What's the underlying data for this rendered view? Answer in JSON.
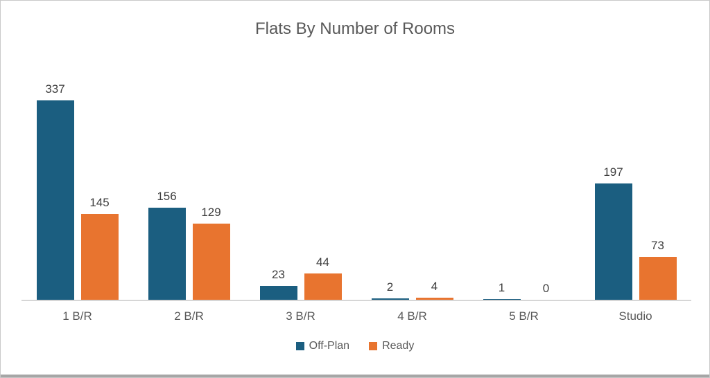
{
  "chart_data": {
    "type": "bar",
    "title": "Flats By Number of Rooms",
    "categories": [
      "1 B/R",
      "2 B/R",
      "3 B/R",
      "4 B/R",
      "5 B/R",
      "Studio"
    ],
    "series": [
      {
        "name": "Off-Plan",
        "color": "#1B5E80",
        "values": [
          337,
          156,
          23,
          2,
          1,
          197
        ]
      },
      {
        "name": "Ready",
        "color": "#E8742F",
        "values": [
          145,
          129,
          44,
          4,
          0,
          73
        ]
      }
    ],
    "xlabel": "",
    "ylabel": "",
    "ylim": [
      0,
      360
    ],
    "grid": false,
    "data_labels": true,
    "legend_position": "bottom"
  },
  "styles": {
    "title_color": "#595959",
    "data_label_color": "#3F3F3F",
    "category_label_color": "#595959",
    "axis_line_color": "#D6D6D6",
    "window_border_color": "#C9C9C9",
    "bottom_edge_color": "#A6A6A6",
    "background": "#FFFFFF"
  }
}
